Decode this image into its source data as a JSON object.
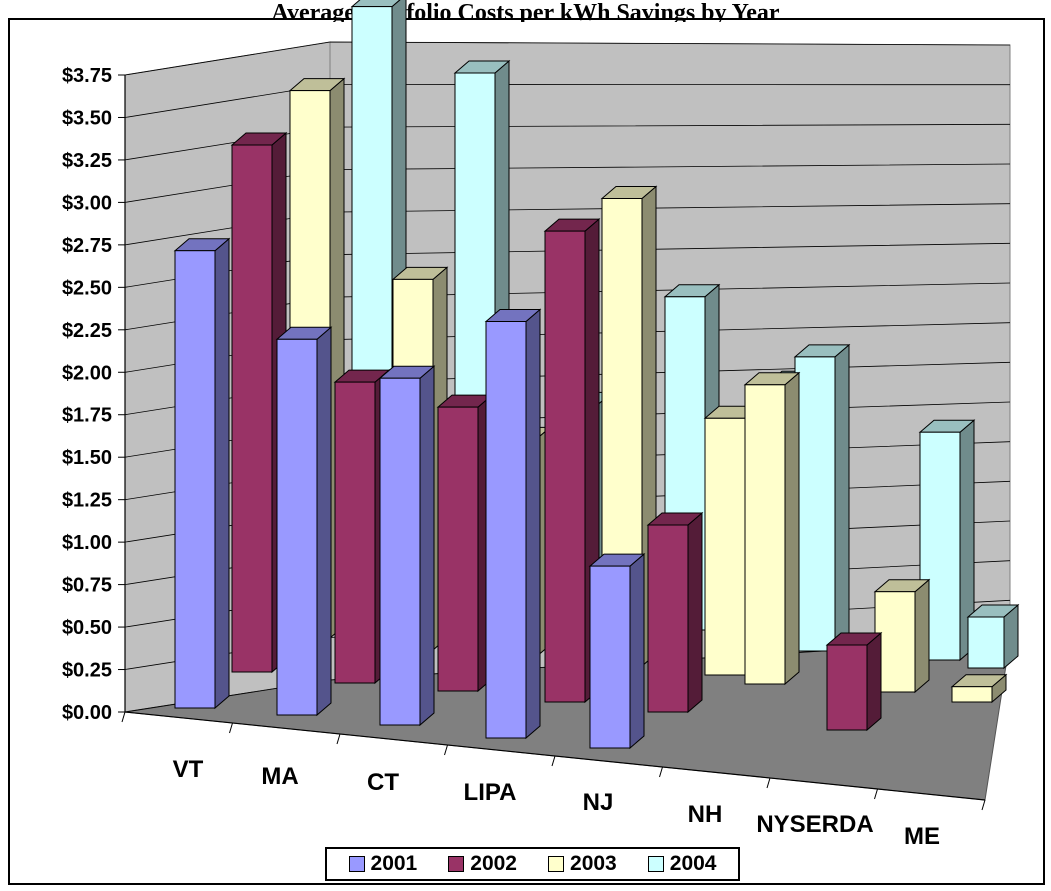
{
  "chart_data": {
    "type": "bar",
    "title": "Average Portfolio Costs per kWh Savings by Year",
    "categories": [
      "VT",
      "MA",
      "CT",
      "LIPA",
      "NJ",
      "NH",
      "NYSERDA",
      "ME"
    ],
    "y_ticks": [
      "$0.00",
      "$0.25",
      "$0.50",
      "$0.75",
      "$1.00",
      "$1.25",
      "$1.50",
      "$1.75",
      "$2.00",
      "$2.25",
      "$2.50",
      "$2.75",
      "$3.00",
      "$3.25",
      "$3.50",
      "$3.75"
    ],
    "ylim": [
      0,
      3.75
    ],
    "grid": true,
    "legend": "bottom",
    "series": [
      {
        "name": "2001",
        "color": "#9999ff",
        "values": [
          2.69,
          2.21,
          2.04,
          2.45,
          1.07,
          null,
          null,
          null
        ]
      },
      {
        "name": "2002",
        "color": "#993366",
        "values": [
          3.1,
          1.77,
          1.67,
          2.77,
          1.1,
          null,
          0.5,
          null
        ]
      },
      {
        "name": "2003",
        "color": "#ffffcc",
        "values": [
          3.22,
          2.18,
          1.28,
          2.75,
          1.51,
          1.76,
          0.59,
          0.09
        ]
      },
      {
        "name": "2004",
        "color": "#ccffff",
        "values": [
          3.52,
          3.2,
          1.28,
          1.96,
          1.51,
          1.73,
          1.34,
          0.3
        ]
      }
    ]
  }
}
